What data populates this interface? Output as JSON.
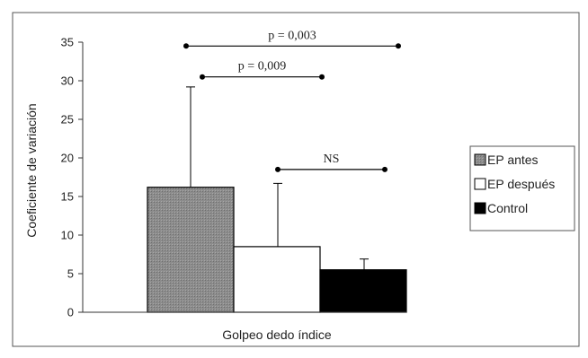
{
  "chart_data": {
    "type": "bar",
    "title": "",
    "xlabel": "Golpeo dedo índice",
    "ylabel": "Coeficiente de variación",
    "ylim": [
      0,
      35
    ],
    "yticks": [
      0,
      5,
      10,
      15,
      20,
      25,
      30,
      35
    ],
    "grid": false,
    "legend_position": "right",
    "series": [
      {
        "name": "EP antes",
        "value": 16.2,
        "error_upper": 29.2,
        "color": "#8c8c8c",
        "hatched": true
      },
      {
        "name": "EP después",
        "value": 8.5,
        "error_upper": 16.7,
        "color": "#ffffff",
        "hatched": false
      },
      {
        "name": "Control",
        "value": 5.5,
        "error_upper": 6.9,
        "color": "#000000",
        "hatched": false
      }
    ],
    "annotations": [
      {
        "text": "p = 0,003",
        "from_series": 0,
        "to_series": 2,
        "y": 34.5
      },
      {
        "text": "p = 0,009",
        "from_series": 0,
        "to_series": 1,
        "y": 30.5
      },
      {
        "text": "NS",
        "from_series": 1,
        "to_series": 2,
        "y": 18.5
      }
    ]
  }
}
